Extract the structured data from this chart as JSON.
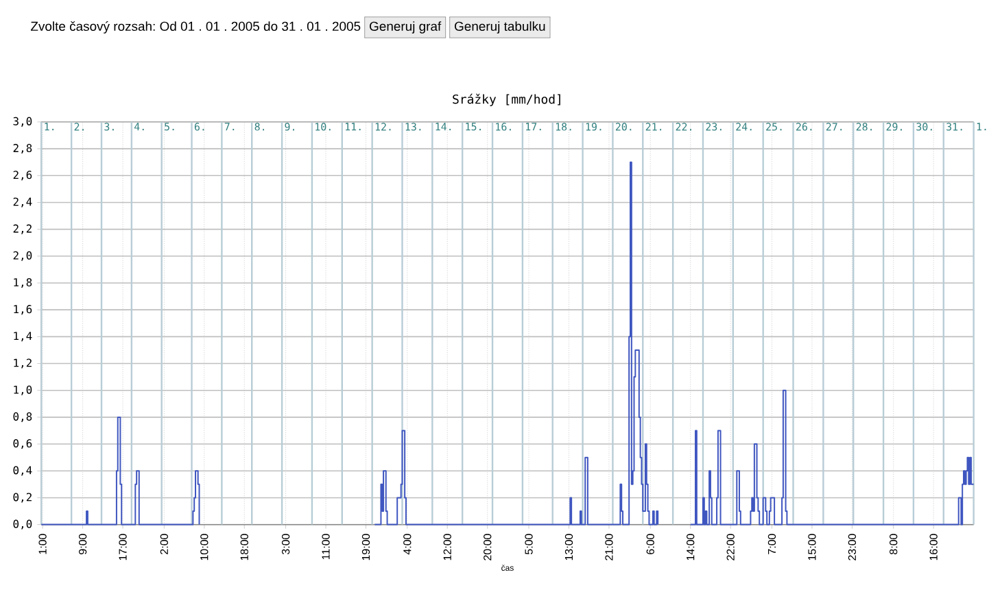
{
  "chart_data": {
    "type": "step",
    "title": "Srážky [mm/hod]",
    "xlabel": "čas",
    "annotations": [
      "Zvolte časový rozsah:",
      "Od",
      "01",
      ".",
      "01",
      ".",
      "2005",
      "do",
      "31",
      ".",
      "01",
      ".",
      "2005",
      "Generuj graf",
      "Generuj tabulku"
    ],
    "xlim": [
      "2005-01-01T00:00",
      "2005-02-01T00:00"
    ],
    "ylim": [
      0,
      3.0
    ],
    "xticks": [
      {
        "value": "2005-01-01T01:00",
        "label": "1:00"
      },
      {
        "value": "2005-01-02T09:00",
        "label": "9:00"
      },
      {
        "value": "2005-01-03T17:00",
        "label": "17:00"
      },
      {
        "value": "2005-01-05T02:00",
        "label": "2:00"
      },
      {
        "value": "2005-01-06T10:00",
        "label": "10:00"
      },
      {
        "value": "2005-01-07T18:00",
        "label": "18:00"
      },
      {
        "value": "2005-01-09T03:00",
        "label": "3:00"
      },
      {
        "value": "2005-01-10T11:00",
        "label": "11:00"
      },
      {
        "value": "2005-01-11T19:00",
        "label": "19:00"
      },
      {
        "value": "2005-01-13T04:00",
        "label": "4:00"
      },
      {
        "value": "2005-01-14T12:00",
        "label": "12:00"
      },
      {
        "value": "2005-01-15T20:00",
        "label": "20:00"
      },
      {
        "value": "2005-01-17T05:00",
        "label": "5:00"
      },
      {
        "value": "2005-01-18T13:00",
        "label": "13:00"
      },
      {
        "value": "2005-01-19T21:00",
        "label": "21:00"
      },
      {
        "value": "2005-01-21T06:00",
        "label": "6:00"
      },
      {
        "value": "2005-01-22T14:00",
        "label": "14:00"
      },
      {
        "value": "2005-01-23T22:00",
        "label": "22:00"
      },
      {
        "value": "2005-01-25T07:00",
        "label": "7:00"
      },
      {
        "value": "2005-01-26T15:00",
        "label": "15:00"
      },
      {
        "value": "2005-01-27T23:00",
        "label": "23:00"
      },
      {
        "value": "2005-01-29T08:00",
        "label": "8:00"
      },
      {
        "value": "2005-01-30T16:00",
        "label": "16:00"
      }
    ],
    "x2lim": [
      "2005-01-01T00:00",
      "2005-02-01T00:00"
    ],
    "x2ticks": [
      {
        "value": "2005-01-01",
        "label": "1."
      },
      {
        "value": "2005-01-02",
        "label": "2."
      },
      {
        "value": "2005-01-03",
        "label": "3."
      },
      {
        "value": "2005-01-04",
        "label": "4."
      },
      {
        "value": "2005-01-05",
        "label": "5."
      },
      {
        "value": "2005-01-06",
        "label": "6."
      },
      {
        "value": "2005-01-07",
        "label": "7."
      },
      {
        "value": "2005-01-08",
        "label": "8."
      },
      {
        "value": "2005-01-09",
        "label": "9."
      },
      {
        "value": "2005-01-10",
        "label": "10."
      },
      {
        "value": "2005-01-11",
        "label": "11."
      },
      {
        "value": "2005-01-12",
        "label": "12."
      },
      {
        "value": "2005-01-13",
        "label": "13."
      },
      {
        "value": "2005-01-14",
        "label": "14."
      },
      {
        "value": "2005-01-15",
        "label": "15."
      },
      {
        "value": "2005-01-16",
        "label": "16."
      },
      {
        "value": "2005-01-17",
        "label": "17."
      },
      {
        "value": "2005-01-18",
        "label": "18."
      },
      {
        "value": "2005-01-19",
        "label": "19."
      },
      {
        "value": "2005-01-20",
        "label": "20."
      },
      {
        "value": "2005-01-21",
        "label": "21."
      },
      {
        "value": "2005-01-22",
        "label": "22."
      },
      {
        "value": "2005-01-23",
        "label": "23."
      },
      {
        "value": "2005-01-24",
        "label": "24."
      },
      {
        "value": "2005-01-25",
        "label": "25."
      },
      {
        "value": "2005-01-26",
        "label": "26."
      },
      {
        "value": "2005-01-27",
        "label": "27."
      },
      {
        "value": "2005-01-28",
        "label": "28."
      },
      {
        "value": "2005-01-29",
        "label": "29."
      },
      {
        "value": "2005-01-30",
        "label": "30."
      },
      {
        "value": "2005-01-31",
        "label": "31."
      },
      {
        "value": "2005-02-01",
        "label": "1."
      }
    ],
    "yticks": [
      {
        "value": 0,
        "label": "0,0"
      },
      {
        "value": 0.2,
        "label": "0,2"
      },
      {
        "value": 0.4,
        "label": "0,4"
      },
      {
        "value": 0.6,
        "label": "0,6"
      },
      {
        "value": 0.8,
        "label": "0,8"
      },
      {
        "value": 1.0,
        "label": "1,0"
      },
      {
        "value": 1.2,
        "label": "1,2"
      },
      {
        "value": 1.4,
        "label": "1,4"
      },
      {
        "value": 1.6,
        "label": "1,6"
      },
      {
        "value": 1.8,
        "label": "1,8"
      },
      {
        "value": 2.0,
        "label": "2,0"
      },
      {
        "value": 2.2,
        "label": "2,2"
      },
      {
        "value": 2.4,
        "label": "2,4"
      },
      {
        "value": 2.6,
        "label": "2,6"
      },
      {
        "value": 2.8,
        "label": "2,8"
      },
      {
        "value": 3.0,
        "label": "3,0"
      }
    ],
    "grid": true,
    "series": [
      {
        "color": "#3f56c0",
        "x": [
          "2005-01-01T00:00",
          "2005-01-02T12:00",
          "2005-01-02T13:00",
          "2005-01-03T12:00",
          "2005-01-03T13:00",
          "2005-01-03T15:00",
          "2005-01-03T16:00",
          "2005-01-04T03:00",
          "2005-01-04T04:00",
          "2005-01-04T06:00",
          "2005-01-06T01:00",
          "2005-01-06T02:00",
          "2005-01-06T03:00",
          "2005-01-06T05:00",
          "2005-01-06T06:00",
          "2005-01-09T21:00",
          "2005-01-12T02:00",
          "2005-01-12T07:00",
          "2005-01-12T08:00",
          "2005-01-12T09:00",
          "2005-01-12T11:00",
          "2005-01-12T12:00",
          "2005-01-12T20:00",
          "2005-01-12T23:00",
          "2005-01-13T00:00",
          "2005-01-13T02:00",
          "2005-01-13T03:00",
          "2005-01-18T14:00",
          "2005-01-18T15:00",
          "2005-01-18T22:00",
          "2005-01-18T23:00",
          "2005-01-19T02:00",
          "2005-01-19T04:00",
          "2005-01-20T06:00",
          "2005-01-20T07:00",
          "2005-01-20T08:00",
          "2005-01-20T13:00",
          "2005-01-20T14:00",
          "2005-01-20T15:00",
          "2005-01-20T16:00",
          "2005-01-20T17:00",
          "2005-01-20T18:00",
          "2005-01-20T21:00",
          "2005-01-20T22:00",
          "2005-01-20T23:00",
          "2005-01-21T00:00",
          "2005-01-21T02:00",
          "2005-01-21T03:00",
          "2005-01-21T04:00",
          "2005-01-21T05:00",
          "2005-01-21T06:00",
          "2005-01-21T08:00",
          "2005-01-21T09:00",
          "2005-01-21T10:00",
          "2005-01-21T11:00",
          "2005-01-21T12:00",
          "2005-01-21T13:00",
          "2005-01-22T14:00",
          "2005-01-22T18:00",
          "2005-01-22T19:00",
          "2005-01-23T00:00",
          "2005-01-23T01:00",
          "2005-01-23T02:00",
          "2005-01-23T03:00",
          "2005-01-23T05:00",
          "2005-01-23T06:00",
          "2005-01-23T07:00",
          "2005-01-23T11:00",
          "2005-01-23T12:00",
          "2005-01-23T14:00",
          "2005-01-24T03:00",
          "2005-01-24T05:00",
          "2005-01-24T06:00",
          "2005-01-24T14:00",
          "2005-01-24T15:00",
          "2005-01-24T16:00",
          "2005-01-24T17:00",
          "2005-01-24T19:00",
          "2005-01-24T20:00",
          "2005-01-24T21:00",
          "2005-01-25T00:00",
          "2005-01-25T02:00",
          "2005-01-25T03:00",
          "2005-01-25T05:00",
          "2005-01-25T06:00",
          "2005-01-25T09:00",
          "2005-01-25T15:00",
          "2005-01-25T16:00",
          "2005-01-25T18:00",
          "2005-01-25T19:00",
          "2005-01-31T12:00",
          "2005-01-31T14:00",
          "2005-01-31T15:00",
          "2005-01-31T16:00",
          "2005-01-31T17:00",
          "2005-01-31T18:00",
          "2005-01-31T19:00",
          "2005-01-31T20:00",
          "2005-01-31T21:00",
          "2005-01-31T22:00",
          "2005-02-01T00:00"
        ],
        "values": [
          0,
          0.1,
          0,
          0.4,
          0.8,
          0.3,
          0,
          0.3,
          0.4,
          0,
          0.1,
          0.2,
          0.4,
          0.3,
          0,
          null,
          0,
          0.3,
          0.1,
          0.4,
          0.1,
          0,
          0.2,
          0.3,
          0.7,
          0.2,
          0,
          0.2,
          0,
          0.1,
          0,
          0.5,
          0,
          0.3,
          0.1,
          0,
          1.4,
          2.7,
          0.3,
          0.4,
          1.1,
          1.3,
          0.8,
          0.5,
          0.3,
          0.1,
          0.6,
          0.3,
          0.1,
          0,
          0,
          0.1,
          0,
          0,
          0.1,
          0,
          null,
          0,
          0.7,
          0,
          0.2,
          0,
          0.1,
          0,
          0.4,
          0.2,
          0,
          0.2,
          0.7,
          0,
          0.4,
          0.1,
          0,
          0.1,
          0.2,
          0.1,
          0.6,
          0.2,
          0.1,
          0,
          0.2,
          0.1,
          0,
          0.1,
          0.2,
          0,
          0.2,
          1.0,
          0.1,
          0,
          0.2,
          0,
          0.3,
          0.4,
          0.3,
          0.4,
          0.5,
          0.3,
          0.5,
          0.3,
          0.3
        ]
      }
    ]
  }
}
